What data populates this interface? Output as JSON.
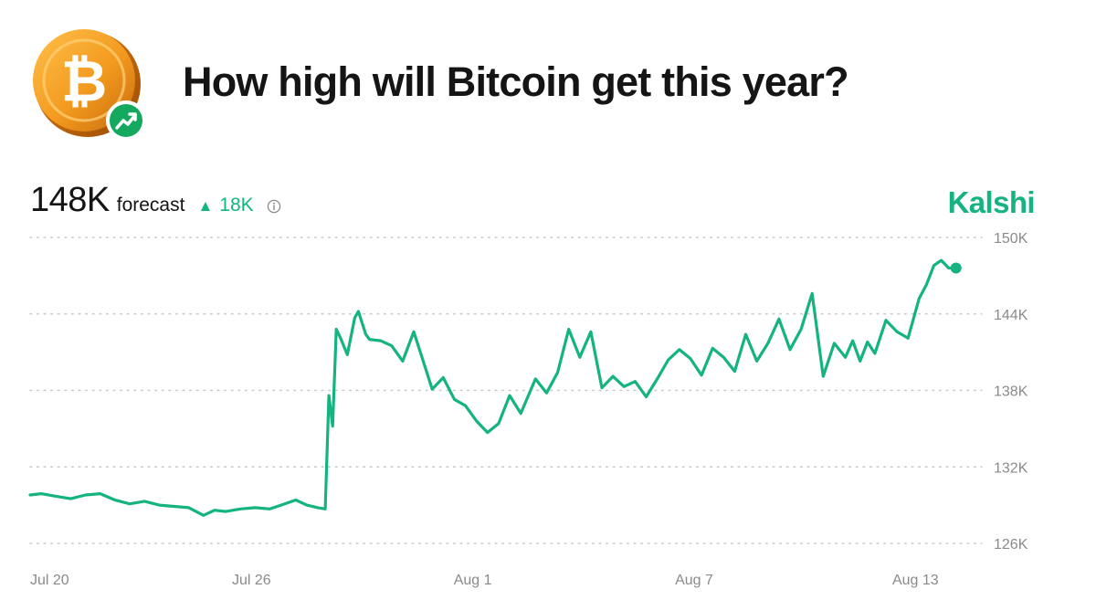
{
  "header": {
    "title": "How high will Bitcoin get this year?",
    "logo_icon": "bitcoin-coin-icon",
    "badge_icon": "trending-up-icon",
    "coin_symbol": "₿"
  },
  "forecast": {
    "value": "148K",
    "label": "forecast",
    "change": "18K",
    "change_icon": "triangle-up-icon",
    "info_icon": "info-icon"
  },
  "brand": {
    "name": "Kalshi",
    "color": "#14b380"
  },
  "chart_data": {
    "type": "line",
    "title": "",
    "xlabel": "",
    "ylabel": "",
    "ylim": [
      126,
      150
    ],
    "grid": true,
    "y_ticks": [
      "150K",
      "144K",
      "138K",
      "132K",
      "126K"
    ],
    "y_tick_values": [
      150,
      144,
      138,
      132,
      126
    ],
    "x_ticks": [
      "Jul 20",
      "Jul 26",
      "Aug 1",
      "Aug 7",
      "Aug 13"
    ],
    "x_tick_values": [
      0,
      6,
      12,
      18,
      24
    ],
    "series": [
      {
        "color": "#14b380",
        "x": [
          0,
          0.3,
          0.7,
          1.1,
          1.5,
          1.9,
          2.3,
          2.7,
          3.1,
          3.5,
          3.9,
          4.3,
          4.7,
          5.0,
          5.3,
          5.7,
          6.1,
          6.5,
          6.9,
          7.2,
          7.5,
          7.8,
          8.0,
          8.1,
          8.2,
          8.3,
          8.4,
          8.6,
          8.8,
          8.9,
          9.1,
          9.2,
          9.5,
          9.8,
          10.1,
          10.4,
          10.6,
          10.9,
          11.2,
          11.5,
          11.8,
          12.1,
          12.4,
          12.7,
          13.0,
          13.3,
          13.7,
          14.0,
          14.3,
          14.6,
          14.9,
          15.2,
          15.5,
          15.8,
          16.1,
          16.4,
          16.7,
          17.0,
          17.3,
          17.6,
          17.9,
          18.2,
          18.5,
          18.8,
          19.1,
          19.4,
          19.7,
          20.0,
          20.3,
          20.6,
          20.9,
          21.2,
          21.5,
          21.8,
          22.1,
          22.3,
          22.5,
          22.7,
          22.9,
          23.2,
          23.5,
          23.8,
          24.1,
          24.3,
          24.5,
          24.7,
          24.9,
          25.1
        ],
        "values": [
          129.8,
          129.9,
          129.7,
          129.5,
          129.8,
          129.9,
          129.4,
          129.1,
          129.3,
          129.0,
          128.9,
          128.8,
          128.2,
          128.6,
          128.5,
          128.7,
          128.8,
          128.7,
          129.1,
          129.4,
          129.0,
          128.8,
          128.7,
          137.6,
          135.2,
          142.8,
          142.2,
          140.8,
          143.7,
          144.2,
          142.4,
          142.0,
          141.9,
          141.5,
          140.3,
          142.6,
          140.8,
          138.1,
          139.0,
          137.3,
          136.8,
          135.6,
          134.7,
          135.4,
          137.6,
          136.2,
          138.9,
          137.8,
          139.4,
          142.8,
          140.6,
          142.6,
          138.2,
          139.1,
          138.3,
          138.7,
          137.5,
          138.9,
          140.4,
          141.2,
          140.5,
          139.2,
          141.3,
          140.6,
          139.5,
          142.4,
          140.3,
          141.7,
          143.6,
          141.2,
          142.8,
          145.6,
          139.1,
          141.7,
          140.6,
          141.9,
          140.3,
          141.8,
          140.9,
          143.5,
          142.6,
          142.1,
          145.2,
          146.3,
          147.8,
          148.2,
          147.6,
          147.6
        ]
      }
    ]
  }
}
